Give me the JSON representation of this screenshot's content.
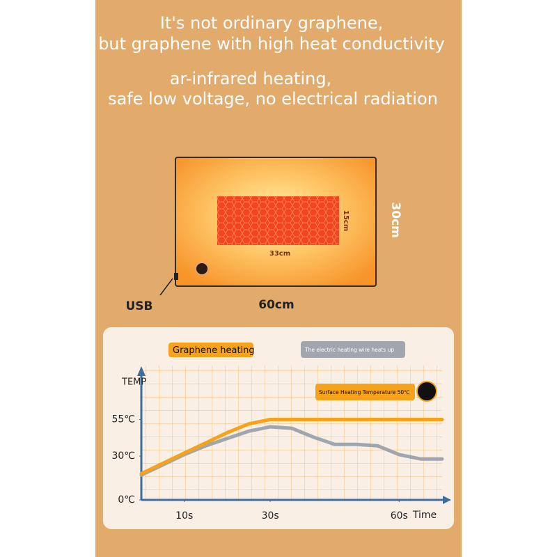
{
  "header": {
    "line1": "It's not ordinary graphene,",
    "line2": "but graphene with high heat conductivity",
    "line3": "ar-infrared heating,",
    "line4": "safe low voltage, no electrical radiation"
  },
  "product": {
    "width": "60cm",
    "height": "30cm",
    "panel_width": "33cm",
    "panel_height": "15cm",
    "port": "USB"
  },
  "chart_data": {
    "type": "line",
    "ylabel": "TEMP",
    "xlabel": "Time",
    "annotation": "Surface Heating Temperature 50℃",
    "x": [
      0,
      5,
      10,
      15,
      20,
      25,
      30,
      35,
      40,
      45,
      50,
      55,
      60,
      65,
      70
    ],
    "series": [
      {
        "name": "Graphene heating",
        "color": "#f7a21b",
        "values": [
          18,
          25,
          32,
          39,
          46,
          52,
          55,
          55,
          55,
          55,
          55,
          55,
          55,
          55,
          55
        ]
      },
      {
        "name": "The electric heating wire heats up",
        "color": "#a0a6ad",
        "values": [
          17,
          24,
          31,
          37,
          42,
          47,
          50,
          49,
          43,
          38,
          38,
          37,
          31,
          28,
          28
        ]
      }
    ],
    "xlim": [
      0,
      70
    ],
    "ylim": [
      0,
      90
    ],
    "xticks": [
      {
        "value": 10,
        "label": "10s"
      },
      {
        "value": 30,
        "label": "30s"
      },
      {
        "value": 60,
        "label": "60s"
      }
    ],
    "yticks": [
      {
        "value": 0,
        "label": "0℃"
      },
      {
        "value": 30,
        "label": "30℃"
      },
      {
        "value": 55,
        "label": "55℃"
      }
    ]
  }
}
